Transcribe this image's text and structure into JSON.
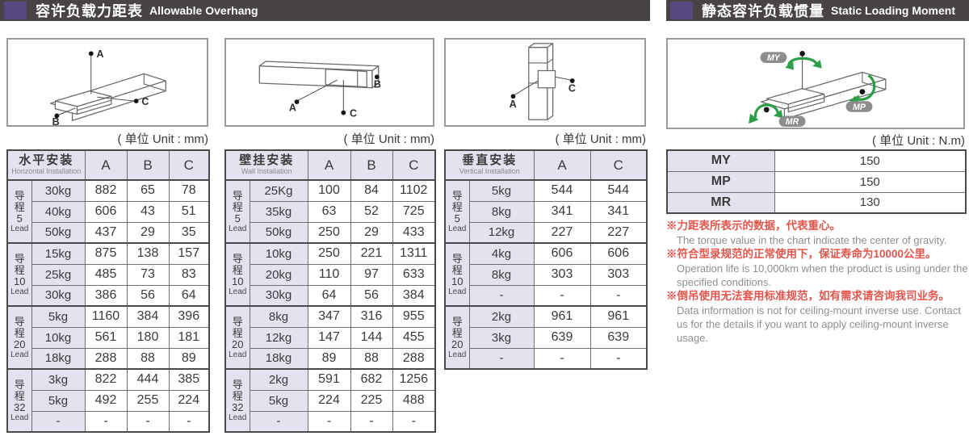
{
  "header_left": {
    "title_zh": "容许负载力距表",
    "title_en": "Allowable Overhang"
  },
  "header_right": {
    "title_zh": "静态容许负载惯量",
    "title_en": "Static Loading Moment"
  },
  "units": {
    "mm": "( 单位 Unit : mm)",
    "nm": "( 单位 Unit : N.m)"
  },
  "diagram_labels": {
    "a": "A",
    "b": "B",
    "c": "C",
    "my": "MY",
    "mp": "MP",
    "mr": "MR"
  },
  "tables": [
    {
      "title_zh": "水平安装",
      "title_en": "Horizontal Installation",
      "columns": [
        "A",
        "B",
        "C"
      ],
      "groups": [
        {
          "lead": {
            "zh": "导程",
            "num": "5",
            "en": "Lead"
          },
          "rows": [
            {
              "load": "30kg",
              "values": [
                "882",
                "65",
                "78"
              ]
            },
            {
              "load": "40kg",
              "values": [
                "606",
                "43",
                "51"
              ]
            },
            {
              "load": "50kg",
              "values": [
                "437",
                "29",
                "35"
              ]
            }
          ]
        },
        {
          "lead": {
            "zh": "导程",
            "num": "10",
            "en": "Lead"
          },
          "rows": [
            {
              "load": "15kg",
              "values": [
                "875",
                "138",
                "157"
              ]
            },
            {
              "load": "25kg",
              "values": [
                "485",
                "73",
                "83"
              ]
            },
            {
              "load": "30kg",
              "values": [
                "386",
                "56",
                "64"
              ]
            }
          ]
        },
        {
          "lead": {
            "zh": "导程",
            "num": "20",
            "en": "Lead"
          },
          "rows": [
            {
              "load": "5kg",
              "values": [
                "1160",
                "384",
                "396"
              ]
            },
            {
              "load": "10kg",
              "values": [
                "561",
                "180",
                "181"
              ]
            },
            {
              "load": "18kg",
              "values": [
                "288",
                "88",
                "89"
              ]
            }
          ]
        },
        {
          "lead": {
            "zh": "导程",
            "num": "32",
            "en": "Lead"
          },
          "rows": [
            {
              "load": "3kg",
              "values": [
                "822",
                "444",
                "385"
              ]
            },
            {
              "load": "5kg",
              "values": [
                "492",
                "255",
                "224"
              ]
            },
            {
              "load": "-",
              "values": [
                "-",
                "-",
                "-"
              ]
            }
          ]
        }
      ]
    },
    {
      "title_zh": "壁挂安装",
      "title_en": "Wall Installation",
      "columns": [
        "A",
        "B",
        "C"
      ],
      "groups": [
        {
          "lead": {
            "zh": "导程",
            "num": "5",
            "en": "Lead"
          },
          "rows": [
            {
              "load": "25Kg",
              "values": [
                "100",
                "84",
                "1102"
              ]
            },
            {
              "load": "35kg",
              "values": [
                "63",
                "52",
                "725"
              ]
            },
            {
              "load": "50kg",
              "values": [
                "250",
                "29",
                "433"
              ]
            }
          ]
        },
        {
          "lead": {
            "zh": "导程",
            "num": "10",
            "en": "Lead"
          },
          "rows": [
            {
              "load": "10kg",
              "values": [
                "250",
                "221",
                "1311"
              ]
            },
            {
              "load": "20kg",
              "values": [
                "110",
                "97",
                "633"
              ]
            },
            {
              "load": "30kg",
              "values": [
                "64",
                "56",
                "384"
              ]
            }
          ]
        },
        {
          "lead": {
            "zh": "导程",
            "num": "20",
            "en": "Lead"
          },
          "rows": [
            {
              "load": "8kg",
              "values": [
                "347",
                "316",
                "955"
              ]
            },
            {
              "load": "12kg",
              "values": [
                "147",
                "144",
                "455"
              ]
            },
            {
              "load": "18kg",
              "values": [
                "89",
                "88",
                "288"
              ]
            }
          ]
        },
        {
          "lead": {
            "zh": "导程",
            "num": "32",
            "en": "Lead"
          },
          "rows": [
            {
              "load": "2kg",
              "values": [
                "591",
                "682",
                "1256"
              ]
            },
            {
              "load": "5kg",
              "values": [
                "224",
                "225",
                "488"
              ]
            },
            {
              "load": "-",
              "values": [
                "-",
                "-",
                "-"
              ]
            }
          ]
        }
      ]
    },
    {
      "title_zh": "垂直安装",
      "title_en": "Vertical Installation",
      "columns": [
        "A",
        "C"
      ],
      "groups": [
        {
          "lead": {
            "zh": "导程",
            "num": "5",
            "en": "Lead"
          },
          "rows": [
            {
              "load": "5kg",
              "values": [
                "544",
                "544"
              ]
            },
            {
              "load": "8kg",
              "values": [
                "341",
                "341"
              ]
            },
            {
              "load": "12kg",
              "values": [
                "227",
                "227"
              ]
            }
          ]
        },
        {
          "lead": {
            "zh": "导程",
            "num": "10",
            "en": "Lead"
          },
          "rows": [
            {
              "load": "4kg",
              "values": [
                "606",
                "606"
              ]
            },
            {
              "load": "8kg",
              "values": [
                "303",
                "303"
              ]
            },
            {
              "load": "-",
              "values": [
                "-",
                "-"
              ]
            }
          ]
        },
        {
          "lead": {
            "zh": "导程",
            "num": "20",
            "en": "Lead"
          },
          "rows": [
            {
              "load": "2kg",
              "values": [
                "961",
                "961"
              ]
            },
            {
              "load": "3kg",
              "values": [
                "639",
                "639"
              ]
            },
            {
              "load": "-",
              "values": [
                "-",
                "-"
              ]
            }
          ]
        }
      ]
    }
  ],
  "moment_table": {
    "rows": [
      {
        "label": "MY",
        "value": "150"
      },
      {
        "label": "MP",
        "value": "150"
      },
      {
        "label": "MR",
        "value": "130"
      }
    ]
  },
  "notes": [
    {
      "zh": "※力距表所表示的数据，代表重心。",
      "en": "The torque value in the chart indicate the center of gravity."
    },
    {
      "zh": "※符合型录规范的正常使用下，保证寿命为10000公里。",
      "en": "Operation life is 10,000km when the product is using under the specified conditions."
    },
    {
      "zh": "※倒吊使用无法套用标准规范，如有需求请咨询我司业务。",
      "en": "Data information is not for ceiling-mount inverse use. Contact us for the details if you want to apply ceiling-mount inverse usage."
    }
  ],
  "colors": {
    "header_bar": "#484345",
    "header_accent": "#57497f",
    "cell_lavender": "#e4e2ef",
    "note_red": "#e2564e",
    "arrow_green": "#2f9e49"
  }
}
